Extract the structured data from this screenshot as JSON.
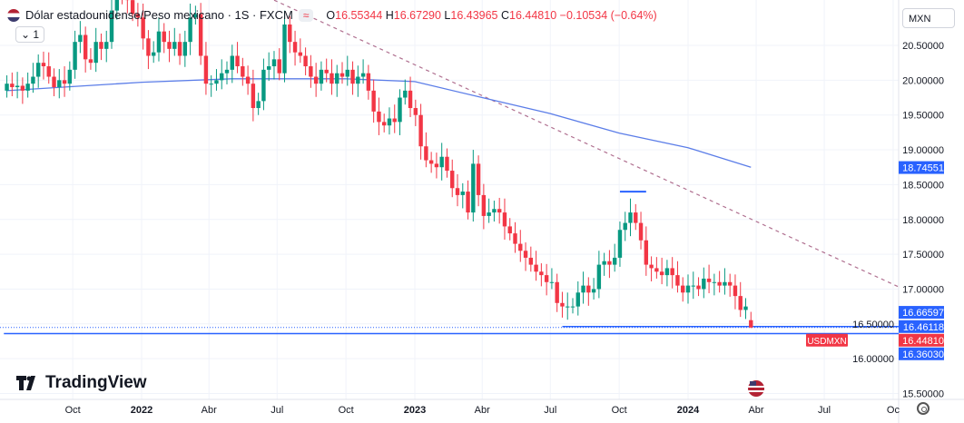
{
  "header": {
    "symbol_title": "Dólar estadounidense/Peso mexicano · 1S · FXCM",
    "indicator_pill": "≈",
    "ohlc": {
      "o_label": "O",
      "o": "16.55344",
      "h_label": "H",
      "h": "16.67290",
      "l_label": "L",
      "l": "16.43965",
      "c_label": "C",
      "c": "16.44810",
      "change": "−0.10534 (−0.64%)"
    },
    "collapse_label": "⌄ 1",
    "currency": "MXN"
  },
  "branding": {
    "logo_text": "TradingView"
  },
  "colors": {
    "up": "#089981",
    "down": "#f23645",
    "ma": "#5b7de8",
    "lines": "#2962ff",
    "trend": "#b07090"
  },
  "chart_data": {
    "type": "candlestick",
    "symbol": "USDMXN",
    "interval": "1W",
    "first_week": "2021-07-05",
    "close": [
      19.95,
      19.9,
      19.92,
      19.85,
      19.95,
      20.05,
      20.25,
      20.2,
      20.05,
      19.9,
      20.0,
      19.95,
      20.15,
      20.55,
      20.65,
      20.3,
      20.25,
      20.55,
      20.45,
      20.55,
      21.0,
      21.35,
      21.25,
      21.15,
      20.95,
      20.9,
      20.6,
      20.35,
      20.4,
      20.7,
      20.55,
      20.45,
      20.55,
      20.35,
      20.55,
      20.9,
      20.95,
      20.35,
      19.95,
      19.95,
      20.0,
      20.1,
      20.15,
      20.35,
      20.2,
      20.05,
      19.95,
      19.6,
      19.7,
      20.15,
      20.2,
      20.3,
      20.1,
      20.8,
      20.55,
      20.4,
      20.35,
      20.2,
      20.05,
      19.95,
      20.15,
      20.1,
      19.95,
      20.1,
      20.05,
      20.15,
      19.95,
      20.05,
      20.1,
      19.85,
      19.55,
      19.4,
      19.35,
      19.45,
      19.4,
      19.75,
      19.85,
      19.6,
      19.5,
      19.05,
      18.85,
      18.8,
      18.75,
      18.9,
      18.7,
      18.45,
      18.35,
      18.4,
      18.1,
      18.8,
      18.35,
      18.05,
      18.1,
      18.15,
      18.1,
      17.9,
      17.8,
      17.65,
      17.55,
      17.45,
      17.35,
      17.25,
      17.2,
      17.1,
      17.1,
      16.8,
      16.75,
      16.75,
      16.75,
      16.95,
      17.05,
      16.95,
      17.0,
      17.35,
      17.4,
      17.35,
      17.45,
      17.85,
      17.95,
      18.1,
      17.95,
      17.7,
      17.35,
      17.3,
      17.25,
      17.2,
      17.3,
      17.2,
      17.05,
      16.95,
      17.05,
      17.05,
      17.0,
      17.15,
      17.1,
      17.1,
      17.05,
      17.1,
      17.05,
      16.9,
      16.7,
      16.75,
      16.4481
    ],
    "last_candle": {
      "open": 16.55344,
      "high": 16.6729,
      "low": 16.43965,
      "close": 16.4481
    },
    "moving_average": [
      [
        "2021-07-05",
        19.85
      ],
      [
        "2022-01-01",
        19.97
      ],
      [
        "2022-05-01",
        20.02
      ],
      [
        "2022-10-01",
        20.02
      ],
      [
        "2023-01-01",
        19.98
      ],
      [
        "2023-04-01",
        19.75
      ],
      [
        "2023-07-01",
        19.52
      ],
      [
        "2023-10-01",
        19.24
      ],
      [
        "2024-01-01",
        19.03
      ],
      [
        "2024-03-25",
        18.75
      ]
    ],
    "trendline": [
      [
        "2022-06-27",
        21.15
      ],
      [
        "2025-01-20",
        16.52
      ]
    ],
    "levels": [
      {
        "price": 16.46118,
        "from": "2023-07-17",
        "label": "16.46118"
      },
      {
        "price": 16.3603,
        "from": "2021-07-01",
        "label": "16.36030"
      },
      {
        "price": 18.4,
        "from": "2023-10-02",
        "to": "2023-11-06"
      }
    ],
    "price_labels": [
      {
        "label": "18.74551",
        "price": 18.74551,
        "kind": "ma"
      },
      {
        "label": "16.66597",
        "price": 16.66597,
        "kind": "level"
      },
      {
        "label": "16.46118",
        "price": 16.46118,
        "kind": "level"
      },
      {
        "label": "16.44810",
        "price": 16.4481,
        "kind": "last"
      },
      {
        "label": "16.36030",
        "price": 16.3603,
        "kind": "level"
      }
    ],
    "last_price_tag": "USDMXN",
    "ylim": [
      15.4,
      21.1
    ],
    "y_ticks": [
      "15.50000",
      "16.00000",
      "16.50000",
      "17.00000",
      "17.50000",
      "18.00000",
      "18.50000",
      "19.00000",
      "19.50000",
      "20.00000",
      "20.50000"
    ],
    "x_ticks": [
      {
        "label": "Oct",
        "date": "2021-10-01"
      },
      {
        "label": "2022",
        "date": "2022-01-01"
      },
      {
        "label": "Abr",
        "date": "2022-04-01"
      },
      {
        "label": "Jul",
        "date": "2022-07-01"
      },
      {
        "label": "Oct",
        "date": "2022-10-01"
      },
      {
        "label": "2023",
        "date": "2023-01-01"
      },
      {
        "label": "Abr",
        "date": "2023-04-01"
      },
      {
        "label": "Jul",
        "date": "2023-07-01"
      },
      {
        "label": "Oct",
        "date": "2023-10-01"
      },
      {
        "label": "2024",
        "date": "2024-01-01"
      },
      {
        "label": "Abr",
        "date": "2024-04-01"
      },
      {
        "label": "Jul",
        "date": "2024-07-01"
      },
      {
        "label": "Oc",
        "date": "2024-10-01"
      }
    ]
  }
}
